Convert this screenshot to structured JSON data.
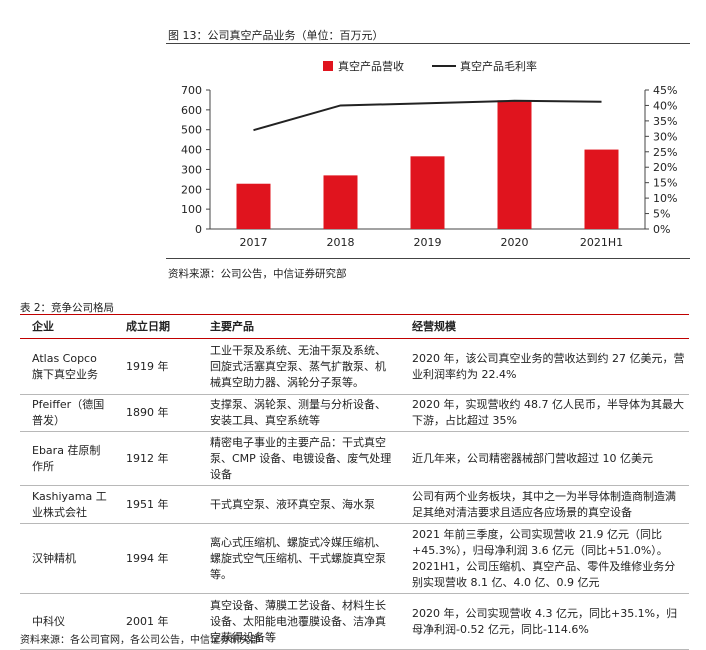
{
  "figure": {
    "title": "图 13：公司真空产品业务（单位：百万元）",
    "source": "资料来源：公司公告，中信证券研究部"
  },
  "chart_data": {
    "type": "bar",
    "categories": [
      "2017",
      "2018",
      "2019",
      "2020",
      "2021H1"
    ],
    "series": [
      {
        "name": "真空产品营收",
        "kind": "bar",
        "axis": "left",
        "color": "#e0141e",
        "values": [
          228,
          270,
          366,
          648,
          400
        ]
      },
      {
        "name": "真空产品毛利率",
        "kind": "line",
        "axis": "right",
        "color": "#222222",
        "values": [
          32,
          40,
          40.7,
          41.5,
          41.2
        ]
      }
    ],
    "left_axis": {
      "min": 0,
      "max": 700,
      "ticks": [
        "0",
        "100",
        "200",
        "300",
        "400",
        "500",
        "600",
        "700"
      ]
    },
    "right_axis": {
      "min": 0,
      "max": 45,
      "ticks": [
        "0%",
        "5%",
        "10%",
        "15%",
        "20%",
        "25%",
        "30%",
        "35%",
        "40%",
        "45%"
      ]
    },
    "legend_position": "top",
    "grid": false
  },
  "table": {
    "title": "表 2：竞争公司格局",
    "headers": [
      "企业",
      "成立日期",
      "主要产品",
      "经营规模"
    ],
    "rows": [
      [
        "Atlas Copco 旗下真空业务",
        "1919 年",
        "工业干泵及系统、无油干泵及系统、回旋式活塞真空泵、蒸气扩散泵、机械真空助力器、涡轮分子泵等。",
        "2020 年，该公司真空业务的营收达到约 27 亿美元，营业利润率约为 22.4%"
      ],
      [
        "Pfeiffer（德国普发）",
        "1890 年",
        "支撑泵、涡轮泵、测量与分析设备、安装工具、真空系统等",
        "2020 年，实现营收约 48.7 亿人民币，半导体为其最大下游，占比超过 35%"
      ],
      [
        "Ebara 荏原制作所",
        "1912 年",
        "精密电子事业的主要产品：干式真空泵、CMP 设备、电镀设备、废气处理设备",
        "近几年来，公司精密器械部门营收超过 10 亿美元"
      ],
      [
        "Kashiyama 工业株式会社",
        "1951 年",
        "干式真空泵、液环真空泵、海水泵",
        "公司有两个业务板块，其中之一为半导体制造商制造满足其绝对清洁要求且适应各应场景的真空设备"
      ],
      [
        "汉钟精机",
        "1994 年",
        "离心式压缩机、螺旋式冷媒压缩机、螺旋式空气压缩机、干式螺旋真空泵等。",
        "2021 年前三季度，公司实现营收 21.9 亿元（同比+45.3%），归母净利润 3.6 亿元（同比+51.0%）。2021H1，公司压缩机、真空产品、零件及维修业务分别实现营收 8.1 亿、4.0 亿、0.9 亿元"
      ],
      [
        "中科仪",
        "2001 年",
        "真空设备、薄膜工艺设备、材料生长设备、太阳能电池覆膜设备、洁净真空获得设备等",
        "2020 年，公司实现营收 4.3 亿元，同比+35.1%，归母净利润-0.52 亿元，同比-114.6%"
      ]
    ]
  },
  "bottom_note": "资料来源：各公司官网，各公司公告，中信证券研究部"
}
